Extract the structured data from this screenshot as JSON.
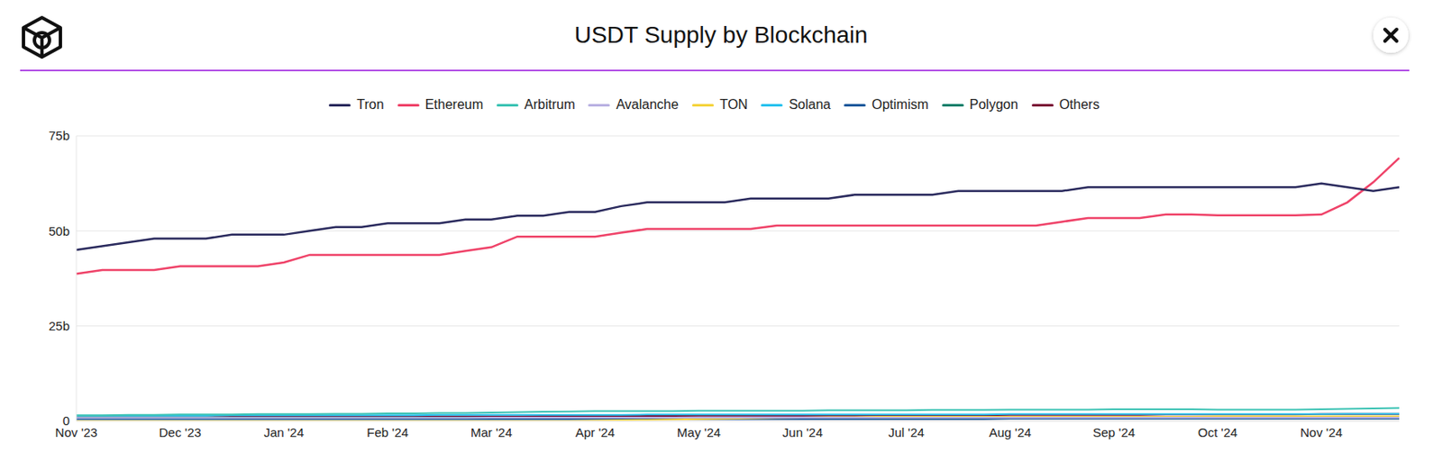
{
  "chart_data": {
    "type": "line",
    "title": "USDT Supply by Blockchain",
    "legend": "top",
    "grid": true,
    "categories": [
      "Nov '23",
      null,
      null,
      null,
      "Dec '23",
      null,
      null,
      null,
      "Jan '24",
      null,
      null,
      null,
      "Feb '24",
      null,
      null,
      null,
      "Mar '24",
      null,
      null,
      null,
      "Apr '24",
      null,
      null,
      null,
      "May '24",
      null,
      null,
      null,
      "Jun '24",
      null,
      null,
      null,
      "Jul '24",
      null,
      null,
      null,
      "Aug '24",
      null,
      null,
      null,
      "Sep '24",
      null,
      null,
      null,
      "Oct '24",
      null,
      null,
      null,
      "Nov '24",
      null,
      null,
      null
    ],
    "ylim": [
      0,
      75
    ],
    "yticks": [
      0,
      {
        "value": 25,
        "label": "25b"
      },
      {
        "value": 50,
        "label": "50b"
      },
      {
        "value": 75,
        "label": "75b"
      }
    ],
    "series": [
      {
        "name": "Tron",
        "color": "#2b2b5e",
        "values": [
          45,
          46,
          47,
          48,
          48,
          48,
          49,
          49,
          49,
          50,
          51,
          51,
          52,
          52,
          52,
          53,
          53,
          54,
          54,
          55,
          55,
          56.5,
          57.5,
          57.5,
          57.5,
          57.5,
          58.5,
          58.5,
          58.5,
          58.5,
          59.5,
          59.5,
          59.5,
          59.5,
          60.5,
          60.5,
          60.5,
          60.5,
          60.5,
          61.5,
          61.5,
          61.5,
          61.5,
          61.5,
          61.5,
          61.5,
          61.5,
          61.5,
          62.5,
          61.5,
          60.5,
          61.5
        ]
      },
      {
        "name": "Ethereum",
        "color": "#ef4369",
        "values": [
          38.7,
          39.7,
          39.7,
          39.7,
          40.7,
          40.7,
          40.7,
          40.7,
          41.7,
          43.7,
          43.7,
          43.7,
          43.7,
          43.7,
          43.7,
          44.7,
          45.7,
          48.5,
          48.5,
          48.5,
          48.5,
          49.5,
          50.5,
          50.5,
          50.5,
          50.5,
          50.5,
          51.4,
          51.4,
          51.4,
          51.4,
          51.4,
          51.4,
          51.4,
          51.4,
          51.4,
          51.4,
          51.4,
          52.4,
          53.4,
          53.4,
          53.4,
          54.3,
          54.3,
          54.1,
          54.1,
          54.1,
          54.1,
          54.3,
          57.5,
          62.8,
          69.2
        ]
      },
      {
        "name": "Arbitrum",
        "color": "#3cc3b4",
        "values": [
          1.5,
          1.5,
          1.6,
          1.6,
          1.7,
          1.7,
          1.7,
          1.8,
          1.8,
          1.8,
          1.9,
          1.9,
          2.0,
          2.0,
          2.1,
          2.1,
          2.2,
          2.3,
          2.4,
          2.5,
          2.6,
          2.6,
          2.6,
          2.6,
          2.7,
          2.7,
          2.7,
          2.7,
          2.7,
          2.8,
          2.8,
          2.8,
          2.8,
          2.9,
          2.9,
          2.9,
          3.0,
          3.0,
          3.0,
          3.0,
          3.1,
          3.1,
          3.1,
          3.1,
          3.0,
          3.0,
          3.0,
          3.0,
          3.1,
          3.2,
          3.3,
          3.4
        ]
      },
      {
        "name": "Avalanche",
        "color": "#b9b1e2",
        "values": [
          0.8,
          0.8,
          0.8,
          0.8,
          0.8,
          0.8,
          0.8,
          0.8,
          0.8,
          0.8,
          0.8,
          0.8,
          0.8,
          0.8,
          0.8,
          0.8,
          0.9,
          0.9,
          0.9,
          0.9,
          0.9,
          0.9,
          0.9,
          0.9,
          0.9,
          0.9,
          0.9,
          0.9,
          0.9,
          0.9,
          0.9,
          0.9,
          0.9,
          0.9,
          0.9,
          0.9,
          0.9,
          0.9,
          0.9,
          0.9,
          0.9,
          0.9,
          0.9,
          0.9,
          0.9,
          0.9,
          0.9,
          0.9,
          0.9,
          0.9,
          0.9,
          0.9
        ]
      },
      {
        "name": "TON",
        "color": "#f5d33c",
        "values": [
          0,
          0,
          0,
          0,
          0,
          0,
          0,
          0,
          0,
          0,
          0,
          0,
          0,
          0,
          0,
          0,
          0,
          0,
          0,
          0,
          0.1,
          0.2,
          0.3,
          0.4,
          0.5,
          0.6,
          0.7,
          0.8,
          0.9,
          1.0,
          1.0,
          1.1,
          1.1,
          1.1,
          1.1,
          1.1,
          1.1,
          1.1,
          1.1,
          1.1,
          1.1,
          1.1,
          1.1,
          1.1,
          1.2,
          1.2,
          1.2,
          1.2,
          1.2,
          1.2,
          1.2,
          1.2
        ]
      },
      {
        "name": "Solana",
        "color": "#29c2ee",
        "values": [
          1.4,
          1.4,
          1.4,
          1.4,
          1.4,
          1.4,
          1.5,
          1.5,
          1.5,
          1.5,
          1.5,
          1.5,
          1.5,
          1.5,
          1.6,
          1.6,
          1.6,
          1.6,
          1.6,
          1.6,
          1.6,
          1.6,
          1.7,
          1.7,
          1.7,
          1.7,
          1.7,
          1.7,
          1.7,
          1.7,
          1.7,
          1.7,
          1.7,
          1.7,
          1.7,
          1.7,
          1.8,
          1.8,
          1.8,
          1.8,
          1.8,
          1.8,
          1.8,
          1.8,
          1.8,
          1.8,
          1.8,
          1.8,
          1.8,
          1.9,
          1.9,
          1.9
        ]
      },
      {
        "name": "Optimism",
        "color": "#1d5a9c",
        "values": [
          0.5,
          0.5,
          0.5,
          0.5,
          0.5,
          0.5,
          0.5,
          0.5,
          0.5,
          0.5,
          0.5,
          0.5,
          0.5,
          0.5,
          0.5,
          0.5,
          0.5,
          0.5,
          0.5,
          0.5,
          0.5,
          0.5,
          0.5,
          0.5,
          0.5,
          0.5,
          0.5,
          0.5,
          0.5,
          0.5,
          0.5,
          0.5,
          0.5,
          0.5,
          0.5,
          0.5,
          0.6,
          0.6,
          0.6,
          0.6,
          0.6,
          0.6,
          0.6,
          0.6,
          0.6,
          0.6,
          0.6,
          0.6,
          0.6,
          0.6,
          0.6,
          0.6
        ]
      },
      {
        "name": "Polygon",
        "color": "#12806b",
        "values": [
          0.9,
          0.9,
          0.9,
          0.9,
          0.9,
          0.9,
          0.9,
          0.9,
          0.9,
          0.9,
          0.9,
          0.9,
          0.9,
          0.9,
          0.9,
          0.9,
          0.9,
          0.9,
          0.9,
          0.9,
          0.9,
          0.9,
          0.9,
          0.9,
          0.8,
          0.8,
          0.8,
          0.8,
          0.8,
          0.8,
          0.8,
          0.8,
          0.8,
          0.8,
          0.8,
          0.8,
          0.8,
          0.8,
          0.8,
          0.8,
          0.8,
          0.8,
          0.8,
          0.8,
          0.8,
          0.8,
          0.8,
          0.8,
          0.8,
          0.8,
          0.8,
          0.8
        ]
      },
      {
        "name": "Others",
        "color": "#7b1137",
        "values": [
          1.0,
          1.0,
          1.0,
          1.0,
          1.0,
          1.0,
          1.1,
          1.1,
          1.1,
          1.1,
          1.1,
          1.1,
          1.2,
          1.2,
          1.2,
          1.2,
          1.2,
          1.2,
          1.3,
          1.3,
          1.3,
          1.3,
          1.3,
          1.3,
          1.4,
          1.4,
          1.4,
          1.4,
          1.4,
          1.4,
          1.4,
          1.5,
          1.5,
          1.5,
          1.5,
          1.5,
          1.6,
          1.6,
          1.6,
          1.6,
          1.6,
          1.6,
          1.7,
          1.7,
          1.7,
          1.7,
          1.7,
          1.7,
          1.8,
          1.8,
          1.8,
          1.8
        ]
      }
    ]
  }
}
